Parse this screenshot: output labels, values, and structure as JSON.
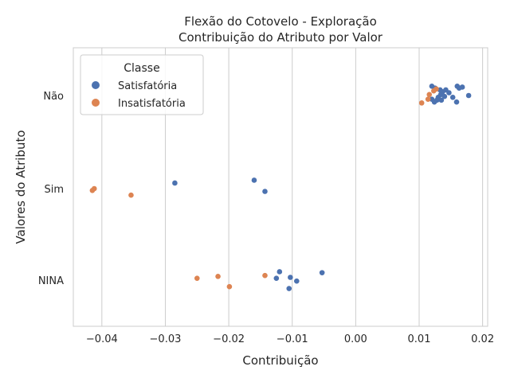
{
  "chart_data": {
    "type": "scatter",
    "title": "Flexão do Cotovelo - Exploração",
    "subtitle": "Contribuição do Atributo por Valor",
    "xlabel": "Contribuição",
    "ylabel": "Valores do Atributo",
    "xlim": [
      -0.0445,
      0.0208
    ],
    "x_ticks": [
      -0.04,
      -0.03,
      -0.02,
      -0.01,
      0.0,
      0.01,
      0.02
    ],
    "x_tick_labels": [
      "−0.04",
      "−0.03",
      "−0.02",
      "−0.01",
      "0.00",
      "0.01",
      "0.02"
    ],
    "categories": [
      "Não",
      "Sim",
      "NINA"
    ],
    "grid": true,
    "legend_title": "Classe",
    "legend_position": "top-left",
    "series": [
      {
        "name": "Satisfatória",
        "color": "#4c72b0",
        "points": [
          {
            "category": "Não",
            "x": 0.012,
            "jitter": -0.1
          },
          {
            "category": "Não",
            "x": 0.0125,
            "jitter": -0.08
          },
          {
            "category": "Não",
            "x": 0.0133,
            "jitter": -0.06
          },
          {
            "category": "Não",
            "x": 0.0142,
            "jitter": -0.06
          },
          {
            "category": "Não",
            "x": 0.016,
            "jitter": -0.1
          },
          {
            "category": "Não",
            "x": 0.0168,
            "jitter": -0.09
          },
          {
            "category": "Não",
            "x": 0.0163,
            "jitter": -0.08
          },
          {
            "category": "Não",
            "x": 0.0147,
            "jitter": -0.03
          },
          {
            "category": "Não",
            "x": 0.0137,
            "jitter": -0.04
          },
          {
            "category": "Não",
            "x": 0.0134,
            "jitter": -0.01
          },
          {
            "category": "Não",
            "x": 0.013,
            "jitter": 0.02
          },
          {
            "category": "Não",
            "x": 0.014,
            "jitter": 0.01
          },
          {
            "category": "Não",
            "x": 0.0178,
            "jitter": 0.0
          },
          {
            "category": "Não",
            "x": 0.0153,
            "jitter": 0.02
          },
          {
            "category": "Não",
            "x": 0.012,
            "jitter": 0.04
          },
          {
            "category": "Não",
            "x": 0.0128,
            "jitter": 0.05
          },
          {
            "category": "Não",
            "x": 0.0135,
            "jitter": 0.05
          },
          {
            "category": "Não",
            "x": 0.0124,
            "jitter": 0.07
          },
          {
            "category": "Não",
            "x": 0.0159,
            "jitter": 0.07
          },
          {
            "category": "Sim",
            "x": -0.0285,
            "jitter": -0.06
          },
          {
            "category": "Sim",
            "x": -0.016,
            "jitter": -0.09
          },
          {
            "category": "Sim",
            "x": -0.0143,
            "jitter": 0.03
          },
          {
            "category": "NINA",
            "x": -0.012,
            "jitter": -0.09
          },
          {
            "category": "NINA",
            "x": -0.0053,
            "jitter": -0.08
          },
          {
            "category": "NINA",
            "x": -0.0103,
            "jitter": -0.03
          },
          {
            "category": "NINA",
            "x": -0.0125,
            "jitter": -0.02
          },
          {
            "category": "NINA",
            "x": -0.0093,
            "jitter": 0.01
          },
          {
            "category": "NINA",
            "x": -0.0105,
            "jitter": 0.09
          }
        ]
      },
      {
        "name": "Insatisfatória",
        "color": "#dd8452",
        "points": [
          {
            "category": "Não",
            "x": 0.0127,
            "jitter": -0.07
          },
          {
            "category": "Não",
            "x": 0.0123,
            "jitter": -0.05
          },
          {
            "category": "Não",
            "x": 0.0116,
            "jitter": -0.01
          },
          {
            "category": "Não",
            "x": 0.0114,
            "jitter": 0.04
          },
          {
            "category": "Não",
            "x": 0.0104,
            "jitter": 0.08
          },
          {
            "category": "Sim",
            "x": -0.0412,
            "jitter": 0.0
          },
          {
            "category": "Sim",
            "x": -0.0415,
            "jitter": 0.02
          },
          {
            "category": "Sim",
            "x": -0.0354,
            "jitter": 0.07
          },
          {
            "category": "NINA",
            "x": -0.0143,
            "jitter": -0.05
          },
          {
            "category": "NINA",
            "x": -0.0217,
            "jitter": -0.04
          },
          {
            "category": "NINA",
            "x": -0.025,
            "jitter": -0.02
          },
          {
            "category": "NINA",
            "x": -0.0199,
            "jitter": 0.07
          }
        ]
      }
    ]
  }
}
